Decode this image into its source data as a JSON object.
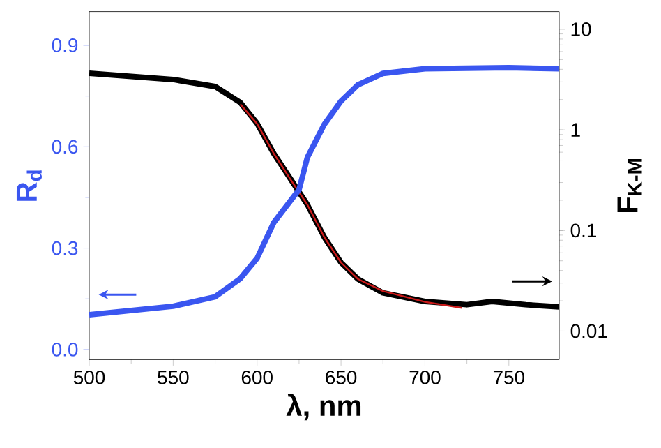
{
  "chart_data": {
    "type": "line",
    "xlabel": "λ, nm",
    "ylabel": "**R$_{d}$**",
    "y2label": "**F$_{K-M}$**",
    "xlim": [
      500,
      780
    ],
    "ylim": [
      -0.03,
      1.0
    ],
    "y2lim": [
      0.0052,
      15
    ],
    "log": "y2",
    "xticks": [
      500,
      550,
      600,
      650,
      700,
      750
    ],
    "yticks": [
      {
        "value": 0,
        "label": "0.0"
      },
      0.3,
      0.6,
      0.9
    ],
    "y2ticks": [
      0.01,
      0.1,
      1,
      10
    ],
    "series": [
      {
        "color": "#3a56f0",
        "x": [
          500,
          550,
          575,
          590,
          600,
          610,
          625,
          630,
          640,
          650,
          660,
          675,
          700,
          750,
          780
        ],
        "values": [
          0.103,
          0.128,
          0.156,
          0.21,
          0.27,
          0.376,
          0.473,
          0.569,
          0.666,
          0.735,
          0.783,
          0.817,
          0.831,
          0.834,
          0.831
        ]
      },
      {
        "color": "#000000",
        "axis": "y2",
        "x": [
          500,
          550,
          575,
          590,
          600,
          610,
          620,
          630,
          640,
          650,
          660,
          675,
          700,
          725,
          740,
          760,
          780
        ],
        "values": [
          3.65,
          3.17,
          2.7,
          1.87,
          1.16,
          0.58,
          0.324,
          0.18,
          0.086,
          0.048,
          0.033,
          0.024,
          0.0197,
          0.0183,
          0.0197,
          0.0183,
          0.0174
        ]
      },
      {
        "color": "#cc1a1a",
        "axis": "y2",
        "x": [
          590,
          600,
          610,
          620,
          630,
          640,
          650,
          660,
          675,
          700,
          722
        ],
        "values": [
          1.8,
          1.15,
          0.58,
          0.32,
          0.18,
          0.086,
          0.048,
          0.033,
          0.025,
          0.0195,
          0.017
        ]
      }
    ]
  }
}
